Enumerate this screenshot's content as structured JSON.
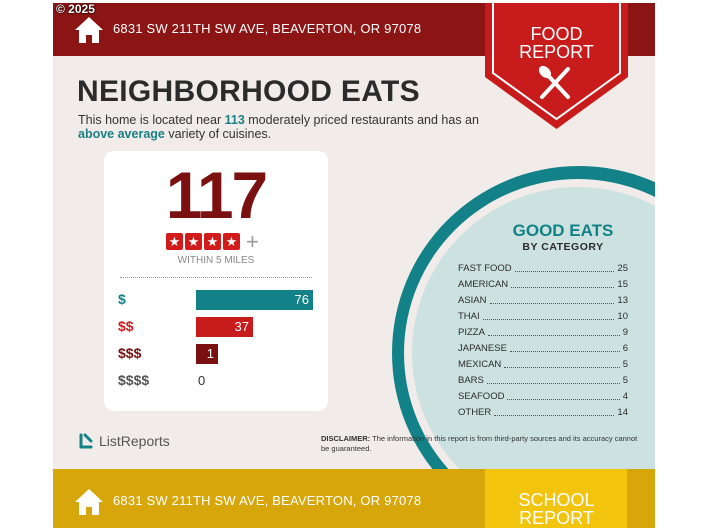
{
  "copyright": "© 2025",
  "header": {
    "address": "6831 SW 211TH SW AVE, BEAVERTON, OR 97078"
  },
  "food_badge": {
    "line1": "FOOD",
    "line2": "REPORT"
  },
  "title": "NEIGHBORHOOD EATS",
  "intro": {
    "part1": "This home is located near ",
    "count": "113",
    "part2": " moderately priced restaurants and has an ",
    "highlight": "above average",
    "part3": " variety of cuisines."
  },
  "score": {
    "number": "117",
    "rating": 4,
    "plus": "+",
    "within": "WITHIN 5 MILES"
  },
  "prices": [
    {
      "label": "$",
      "value": 76,
      "color": "#138288"
    },
    {
      "label": "$$",
      "value": 37,
      "color": "#c81c1c"
    },
    {
      "label": "$$$",
      "value": 1,
      "color": "#7a1010"
    },
    {
      "label": "$$$$",
      "value": 0,
      "color": "#555555"
    }
  ],
  "good_eats": {
    "title": "GOOD EATS",
    "subtitle": "BY CATEGORY",
    "categories": [
      {
        "name": "FAST FOOD",
        "count": "25"
      },
      {
        "name": "AMERICAN",
        "count": "15"
      },
      {
        "name": "ASIAN",
        "count": "13"
      },
      {
        "name": "THAI",
        "count": "10"
      },
      {
        "name": "PIZZA",
        "count": "9"
      },
      {
        "name": "JAPANESE",
        "count": "6"
      },
      {
        "name": "MEXICAN",
        "count": "5"
      },
      {
        "name": "BARS",
        "count": "5"
      },
      {
        "name": "SEAFOOD",
        "count": "4"
      },
      {
        "name": "OTHER",
        "count": "14"
      }
    ]
  },
  "logo": {
    "text": "ListReports"
  },
  "disclaimer": {
    "label": "DISCLAIMER:",
    "text": " The information in this report is from third-party sources and its accuracy cannot be guaranteed."
  },
  "footer": {
    "address": "6831 SW 211TH SW AVE, BEAVERTON, OR 97078",
    "badge_line1": "SCHOOL",
    "badge_line2": "REPORT"
  },
  "colors": {
    "maroon": "#8b1414",
    "red": "#c81c1c",
    "teal": "#138288",
    "gold": "#d7a60a",
    "yellow": "#f2c40e"
  }
}
